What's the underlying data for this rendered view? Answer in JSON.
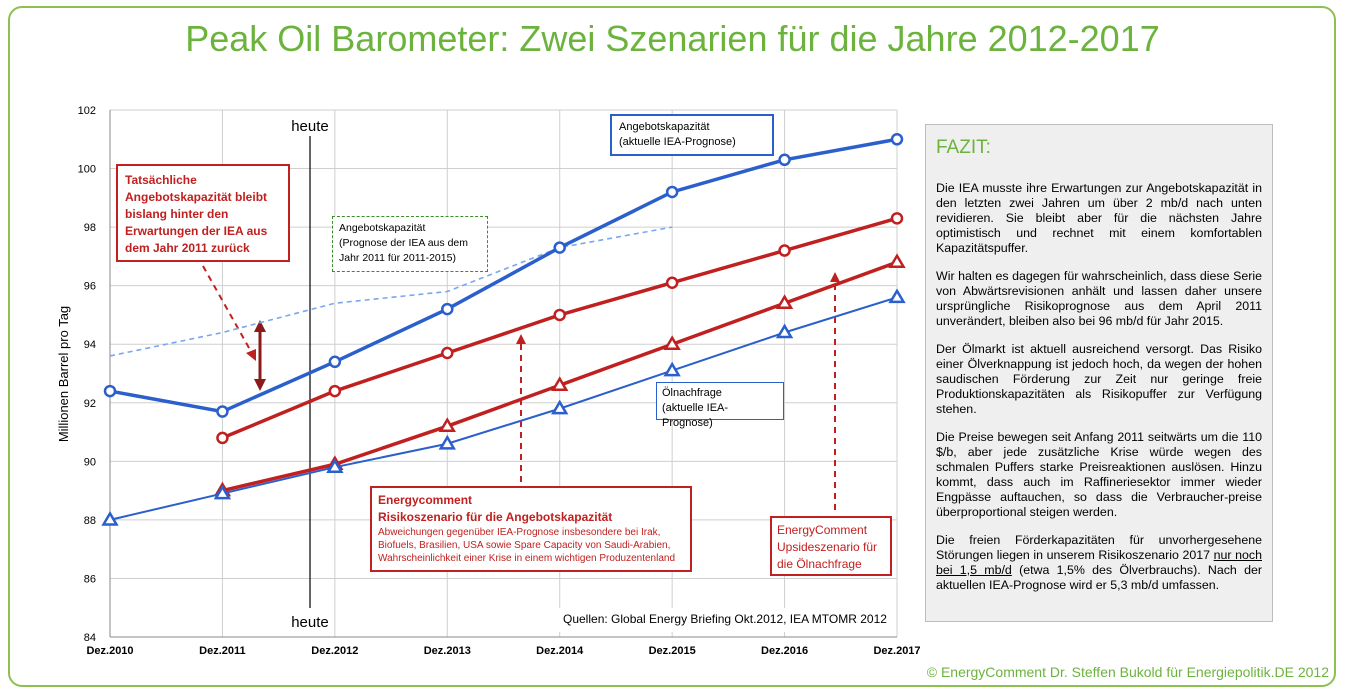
{
  "title": "Peak Oil Barometer: Zwei Szenarien für die Jahre 2012-2017",
  "copyright": "© EnergyComment Dr. Steffen Bukold für Energiepolitik.DE 2012",
  "colors": {
    "blue": "#2a5fcc",
    "red": "#c0201f",
    "lightblue": "#7aa6f0",
    "darkred": "#8b1a1a",
    "green": "#6cb33e"
  },
  "chart_data": {
    "type": "line",
    "ylabel": "Millionen Barrel pro Tag",
    "ylim": [
      84,
      102
    ],
    "yticks": [
      "84",
      "86",
      "88",
      "90",
      "92",
      "94",
      "96",
      "98",
      "100",
      "102"
    ],
    "categories": [
      "Dez.2010",
      "Dez.2011",
      "Dez.2012",
      "Dez.2013",
      "Dez.2014",
      "Dez.2015",
      "Dez.2016",
      "Dez.2017"
    ],
    "grid": true,
    "today_label": "heute",
    "sources": "Quellen: Global Energy Briefing Okt.2012, IEA MTOMR 2012",
    "series": [
      {
        "key": "supply_iea",
        "x": [
          0,
          1,
          2,
          3,
          4,
          5,
          6,
          7
        ],
        "values": [
          92.4,
          91.7,
          93.4,
          95.2,
          97.3,
          99.2,
          100.3,
          101.0
        ],
        "marker": "circle",
        "color": "#2a5fcc"
      },
      {
        "key": "supply_risk",
        "x": [
          1,
          2,
          3,
          4,
          5,
          6,
          7
        ],
        "values": [
          90.8,
          92.4,
          93.7,
          95.0,
          96.1,
          97.2,
          98.3
        ],
        "marker": "circle",
        "color": "#c0201f"
      },
      {
        "key": "demand_upside",
        "x": [
          1,
          2,
          3,
          4,
          5,
          6,
          7
        ],
        "values": [
          89.0,
          89.9,
          91.2,
          92.6,
          94.0,
          95.4,
          96.8
        ],
        "marker": "triangle",
        "color": "#c0201f"
      },
      {
        "key": "demand_iea",
        "x": [
          0,
          1,
          2,
          3,
          4,
          5,
          6,
          7
        ],
        "values": [
          88.0,
          88.9,
          89.8,
          90.6,
          91.8,
          93.1,
          94.4,
          95.6
        ],
        "marker": "triangle",
        "color": "#2a5fcc"
      },
      {
        "key": "supply_iea_2011",
        "x": [
          0,
          1,
          2,
          3,
          4,
          5
        ],
        "values": [
          93.6,
          94.4,
          95.4,
          95.8,
          97.3,
          98.0
        ],
        "marker": "none",
        "dashed": true,
        "color": "#7aa6f0"
      }
    ]
  },
  "annotations": {
    "supply_current_l1": "Angebotskapazität",
    "supply_current_l2": "(aktuelle IEA-Prognose)",
    "supply_2011_l1": "Angebotskapazität",
    "supply_2011_l2": "(Prognose der IEA aus dem",
    "supply_2011_l3": "Jahr 2011 für 2011-2015)",
    "actual_l1": "Tatsächliche",
    "actual_l2": "Angebotskapazität bleibt",
    "actual_l3": "bislang hinter den",
    "actual_l4": "Erwartungen der IEA aus",
    "actual_l5": "dem Jahr 2011 zurück",
    "demand_l1": "Ölnachfrage",
    "demand_l2": "(aktuelle IEA-Prognose)",
    "risk_title_l1": "Energycomment",
    "risk_title_l2": "Risikoszenario für die Angebotskapazität",
    "risk_desc_l1": "Abweichungen gegenüber IEA-Prognose insbesondere bei Irak,",
    "risk_desc_l2": "Biofuels, Brasilien, USA sowie Spare Capacity von Saudi-Arabien,",
    "risk_desc_l3": "Wahrscheinlichkeit einer Krise in einem wichtigen Produzentenland",
    "upside_l1": "EnergyComment",
    "upside_l2": "Upsideszenario für",
    "upside_l3": "die Ölnachfrage"
  },
  "fazit": {
    "heading": "FAZIT:",
    "p1": "Die IEA musste ihre Erwartungen zur Angebotskapazität in den letzten zwei Jahren um über 2 mb/d nach unten revidieren. Sie bleibt aber für die nächsten Jahre optimistisch und rechnet mit einem komfortablen Kapazitätspuffer.",
    "p2": "Wir halten es dagegen für wahrscheinlich, dass diese Serie von Abwärtsrevisionen anhält und lassen daher unsere ursprüngliche Risikoprognose aus dem April 2011 unverändert, bleiben also bei 96 mb/d für Jahr 2015.",
    "p3": "Der Ölmarkt ist aktuell ausreichend versorgt. Das Risiko einer Ölverknappung ist jedoch hoch, da wegen der hohen saudischen Förderung zur Zeit nur geringe freie Produktionskapazitäten als Risikopuffer zur Verfügung stehen.",
    "p4": "Die Preise bewegen seit Anfang 2011 seitwärts um die 110 $/b, aber jede zusätzliche Krise würde wegen des schmalen Puffers starke Preisreaktionen auslösen. Hinzu kommt, dass auch im Raffineriesektor immer wieder Engpässe auftauchen, so dass die Verbraucher-preise überproportional steigen werden.",
    "p5_a": "Die freien Förderkapazitäten für unvorhergesehene Störungen liegen in unserem Risikoszenario 2017 ",
    "p5_u": "nur noch bei 1,5 mb/d",
    "p5_b": " (etwa 1,5% des Ölverbrauchs). Nach der aktuellen IEA-Prognose wird er 5,3 mb/d umfassen."
  }
}
